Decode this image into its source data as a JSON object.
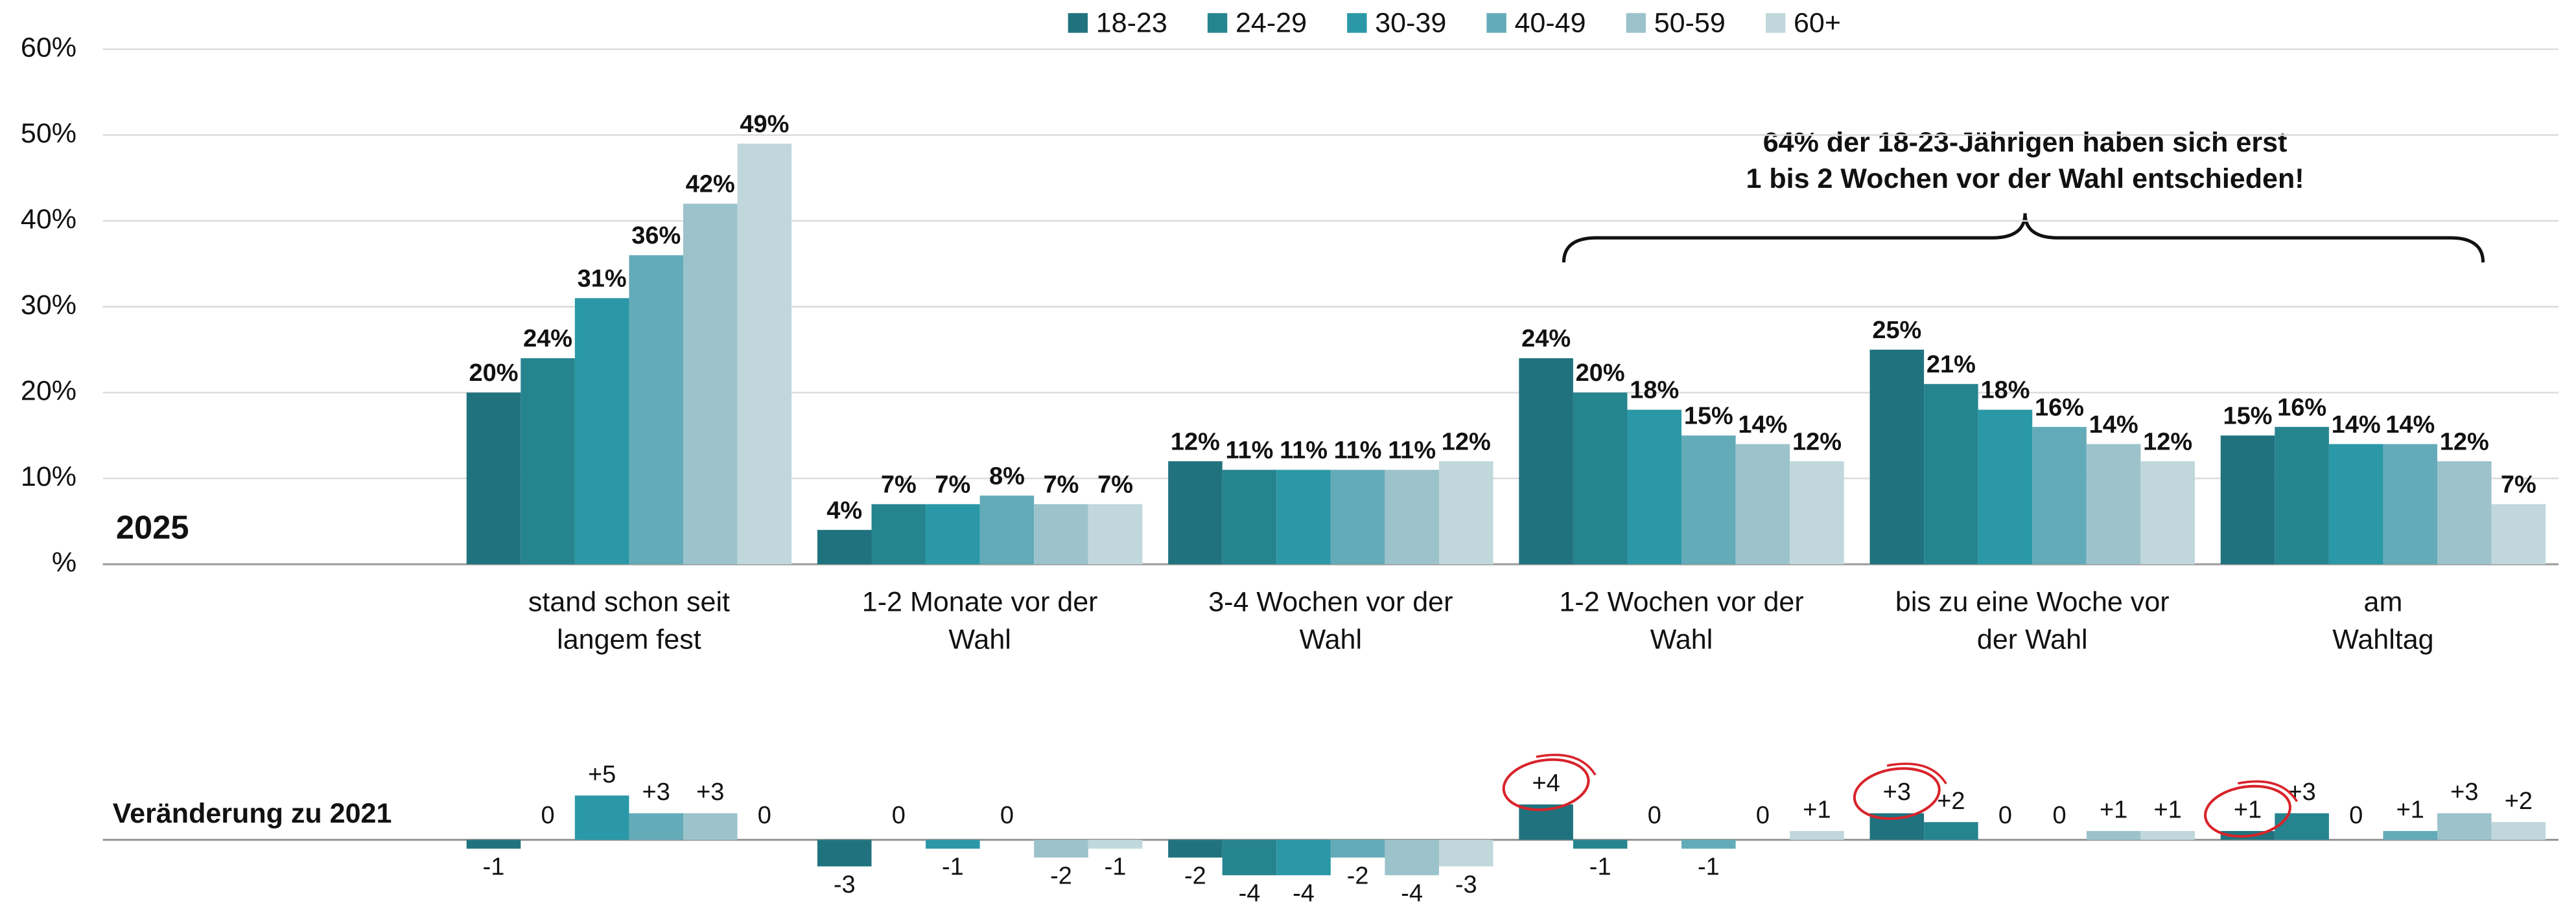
{
  "chart_data": [
    {
      "type": "bar",
      "annotation": "2025",
      "callout": [
        "64% der 18-23-Jährigen haben sich erst",
        "1 bis 2 Wochen vor der Wahl entschieden!"
      ],
      "categories": [
        [
          "stand schon seit",
          "langem fest"
        ],
        [
          "1-2 Monate vor der",
          "Wahl"
        ],
        [
          "3-4 Wochen vor der",
          "Wahl"
        ],
        [
          "1-2 Wochen vor der",
          "Wahl"
        ],
        [
          "bis zu eine Woche vor",
          "der Wahl"
        ],
        [
          "am",
          "Wahltag"
        ]
      ],
      "series": [
        {
          "name": "18-23",
          "color": "#20737e",
          "values": [
            20,
            4,
            12,
            24,
            25,
            15
          ],
          "value_labels": [
            "20%",
            "4%",
            "12%",
            "24%",
            "25%",
            "15%"
          ]
        },
        {
          "name": "24-29",
          "color": "#26848f",
          "values": [
            24,
            7,
            11,
            20,
            21,
            16
          ],
          "value_labels": [
            "24%",
            "7%",
            "11%",
            "20%",
            "21%",
            "16%"
          ]
        },
        {
          "name": "30-39",
          "color": "#2a98a6",
          "values": [
            31,
            7,
            11,
            18,
            18,
            14
          ],
          "value_labels": [
            "31%",
            "7%",
            "11%",
            "18%",
            "18%",
            "14%"
          ]
        },
        {
          "name": "40-49",
          "color": "#64abb9",
          "values": [
            36,
            8,
            11,
            15,
            16,
            14
          ],
          "value_labels": [
            "36%",
            "8%",
            "11%",
            "15%",
            "16%",
            "14%"
          ]
        },
        {
          "name": "50-59",
          "color": "#9cc3cb",
          "values": [
            42,
            7,
            11,
            14,
            14,
            12
          ],
          "value_labels": [
            "42%",
            "7%",
            "11%",
            "14%",
            "14%",
            "12%"
          ]
        },
        {
          "name": "60+",
          "color": "#c0d8dc",
          "values": [
            49,
            7,
            12,
            12,
            12,
            7
          ],
          "value_labels": [
            "49%",
            "7%",
            "12%",
            "12%",
            "12%",
            "7%"
          ]
        }
      ],
      "ylim": [
        0,
        60
      ],
      "yticks": [
        {
          "value": 0,
          "label": "%"
        },
        {
          "value": 10,
          "label": "10%"
        },
        {
          "value": 20,
          "label": "20%"
        },
        {
          "value": 30,
          "label": "30%"
        },
        {
          "value": 40,
          "label": "40%"
        },
        {
          "value": 50,
          "label": "50%"
        },
        {
          "value": 60,
          "label": "60%"
        }
      ],
      "grid": true,
      "legend": "top"
    },
    {
      "type": "bar",
      "annotation": "Veränderung zu 2021",
      "series": [
        {
          "values": [
            -1,
            -3,
            -2,
            4,
            3,
            1
          ],
          "value_labels": [
            "-1",
            "-3",
            "-2",
            "+4",
            "+3",
            "+1"
          ]
        },
        {
          "values": [
            0,
            0,
            -4,
            -1,
            2,
            3
          ],
          "value_labels": [
            "0",
            "0",
            "-4",
            "-1",
            "+2",
            "+3"
          ]
        },
        {
          "values": [
            5,
            -1,
            -4,
            0,
            0,
            0
          ],
          "value_labels": [
            "+5",
            "-1",
            "-4",
            "0",
            "0",
            "0"
          ]
        },
        {
          "values": [
            3,
            0,
            -2,
            -1,
            0,
            1
          ],
          "value_labels": [
            "+3",
            "0",
            "-2",
            "-1",
            "0",
            "+1"
          ]
        },
        {
          "values": [
            3,
            -2,
            -4,
            0,
            1,
            3
          ],
          "value_labels": [
            "+3",
            "-2",
            "-4",
            "0",
            "+1",
            "+3"
          ]
        },
        {
          "values": [
            0,
            -1,
            -3,
            1,
            1,
            2
          ],
          "value_labels": [
            "0",
            "-1",
            "-3",
            "+1",
            "+1",
            "+2"
          ]
        }
      ],
      "highlight": {
        "series": 0,
        "categories": [
          3,
          4,
          5
        ]
      }
    }
  ]
}
